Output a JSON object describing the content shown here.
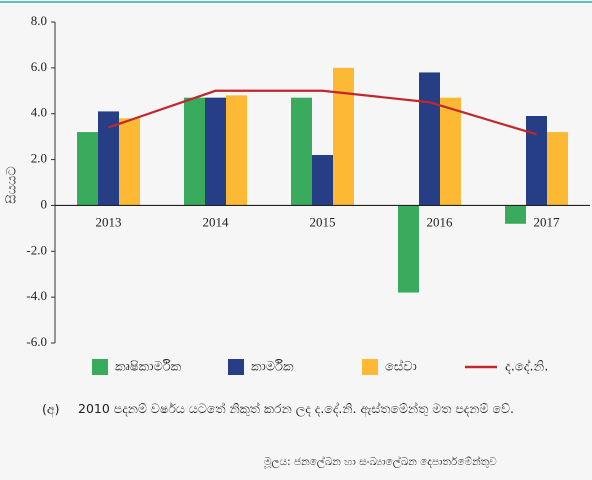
{
  "chart_data": {
    "type": "bar",
    "y_label": "සියයට",
    "categories": [
      "2013",
      "2014",
      "2015",
      "2016",
      "2017"
    ],
    "series": [
      {
        "name": "කෘෂිකාර්මික",
        "color": "#3aaa5c",
        "values": [
          3.2,
          4.7,
          4.7,
          -3.8,
          -0.8
        ]
      },
      {
        "name": "කාර්මික",
        "color": "#253e86",
        "values": [
          4.1,
          4.7,
          2.2,
          5.8,
          3.9
        ]
      },
      {
        "name": "සේවා",
        "color": "#fdb933",
        "values": [
          3.8,
          4.8,
          6.0,
          4.7,
          3.2
        ]
      },
      {
        "name": "ද.දේ.නි.",
        "color": "#c1272d",
        "type": "line",
        "values": [
          3.4,
          5.0,
          5.0,
          4.5,
          3.1
        ]
      }
    ],
    "ylim": [
      -6,
      8
    ],
    "yticks": [
      {
        "value": -6,
        "label": "-6.0"
      },
      {
        "value": -4,
        "label": "-4.0"
      },
      {
        "value": -2,
        "label": "-2.0"
      },
      0,
      {
        "value": 2,
        "label": "2.0"
      },
      {
        "value": 4,
        "label": "4.0"
      },
      {
        "value": 6,
        "label": "6.0"
      },
      {
        "value": 8,
        "label": "8.0"
      }
    ],
    "grid": false,
    "legend": "bottom",
    "note_marker": "(අ)",
    "note": "2010 පදනම් වර්ෂය යටතේ නිකුත් කරන ලද ද.දේ.නි. ඇස්තමේන්තු මත පදනම් වේ.",
    "source": "මූලය: ජනලේඛන හා සංඛ්‍යාලේඛන දෙපාර්තමේන්තුව"
  }
}
